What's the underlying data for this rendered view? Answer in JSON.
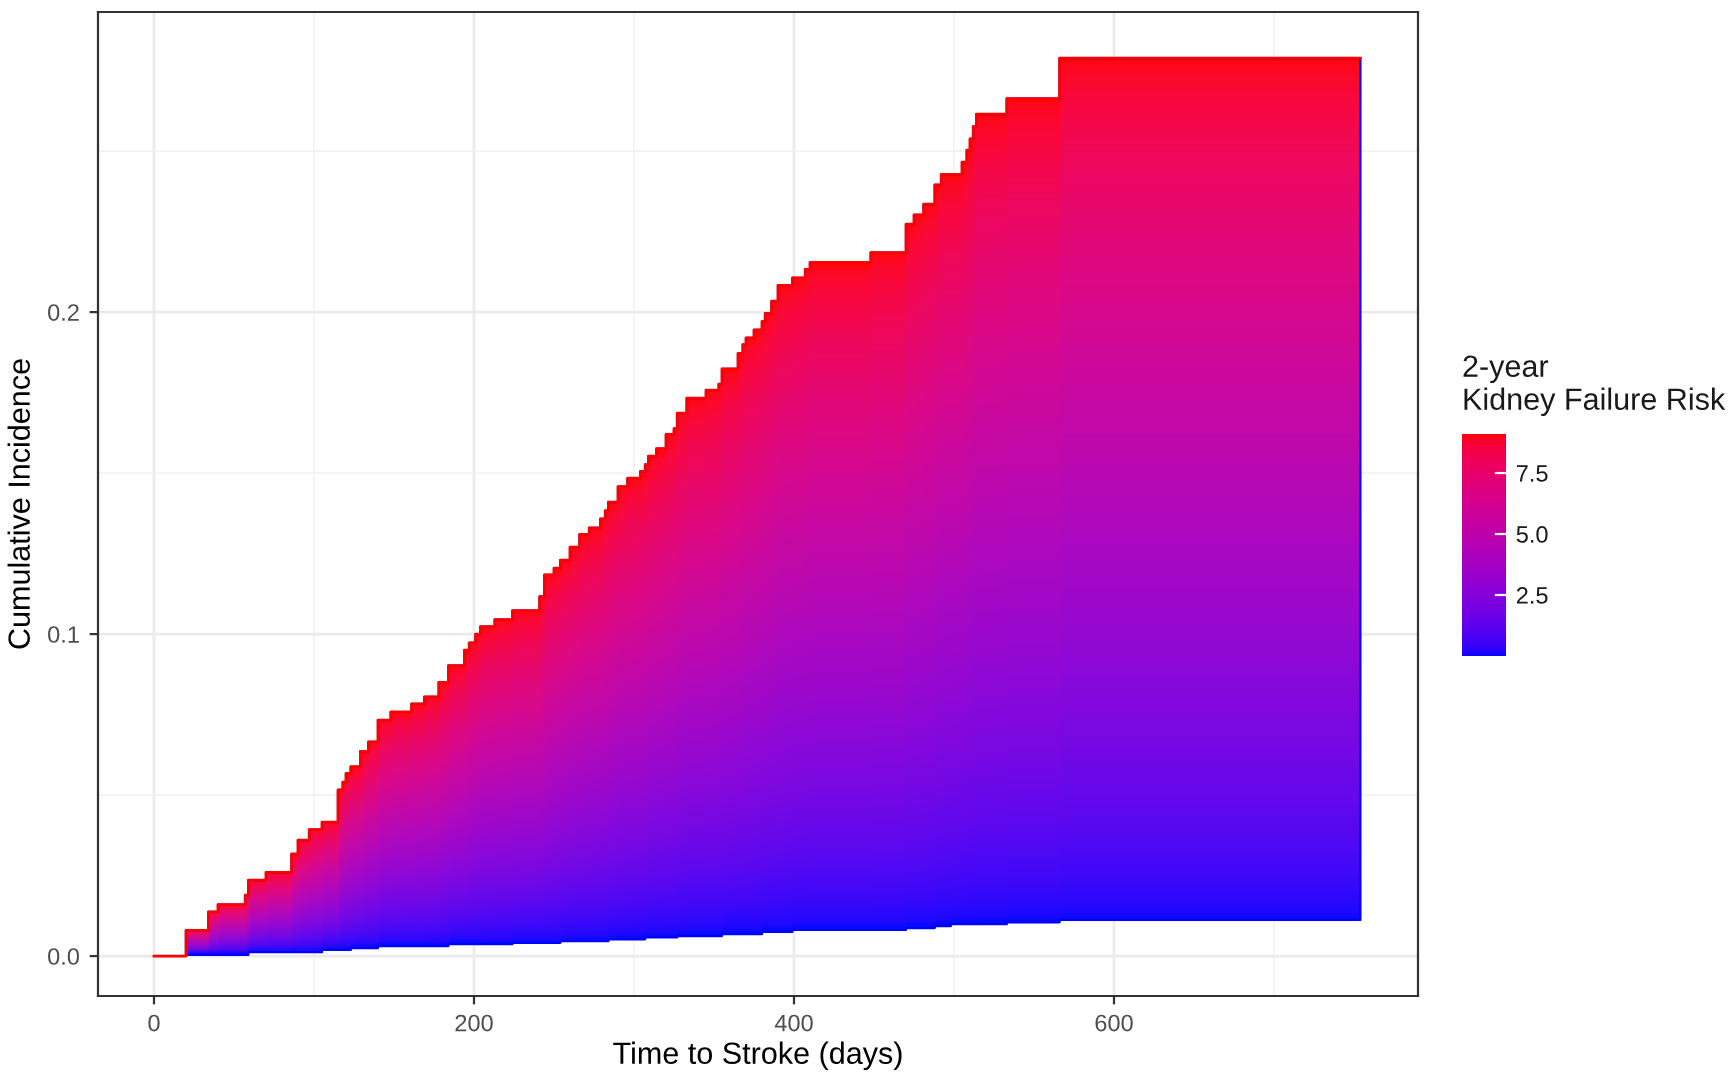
{
  "chart_data": {
    "type": "step",
    "xlabel": "Time to Stroke (days)",
    "ylabel": "Cumulative Incidence",
    "clabel": "2-year\nKidney Failure Risk",
    "xlim": [
      -35,
      790
    ],
    "xticks": [
      0,
      200,
      400,
      600
    ],
    "ylim": [
      -0.0124,
      0.2932
    ],
    "yticks": [
      {
        "value": 0,
        "label": "0.0"
      },
      {
        "value": 0.1,
        "label": "0.1"
      },
      {
        "value": 0.2,
        "label": "0.2"
      }
    ],
    "clim": [
      0,
      9.1
    ],
    "cticks": [
      {
        "value": 2.5,
        "label": "2.5"
      },
      {
        "value": 5,
        "label": "5.0"
      },
      {
        "value": 7.5,
        "label": "7.5"
      }
    ],
    "grid": true,
    "legend": false,
    "line_style": "solid",
    "series": [
      {
        "color": "#ff0000",
        "x": [
          0,
          20,
          34,
          40,
          57,
          59,
          70,
          86,
          90,
          97,
          105,
          115,
          118,
          120,
          123,
          129,
          134,
          140,
          148,
          161,
          169,
          178,
          184,
          194,
          197,
          201,
          204,
          213,
          224,
          241,
          244,
          250,
          254,
          260,
          266,
          272,
          279,
          282,
          284,
          290,
          296,
          304,
          307,
          309,
          314,
          320,
          325,
          327,
          333,
          345,
          353,
          355,
          365,
          368,
          370,
          375,
          380,
          382,
          386,
          390,
          399,
          407,
          410,
          448,
          470,
          475,
          481,
          488,
          492,
          498,
          505,
          508,
          510,
          512,
          514,
          533,
          566,
          754
        ],
        "values": [
          0,
          0.008,
          0.0137,
          0.016,
          0.0189,
          0.0236,
          0.026,
          0.0317,
          0.036,
          0.0393,
          0.0416,
          0.0516,
          0.054,
          0.0567,
          0.0588,
          0.0636,
          0.0665,
          0.0733,
          0.0758,
          0.0783,
          0.0805,
          0.085,
          0.0902,
          0.095,
          0.0973,
          0.1,
          0.1023,
          0.1045,
          0.1073,
          0.1116,
          0.1184,
          0.1205,
          0.123,
          0.127,
          0.131,
          0.133,
          0.1358,
          0.1383,
          0.141,
          0.1458,
          0.1484,
          0.1505,
          0.1526,
          0.1553,
          0.1576,
          0.162,
          0.1638,
          0.1686,
          0.1733,
          0.1758,
          0.1776,
          0.1824,
          0.1872,
          0.1899,
          0.192,
          0.1945,
          0.1971,
          0.1996,
          0.2034,
          0.2083,
          0.2106,
          0.2133,
          0.2154,
          0.2185,
          0.2273,
          0.2302,
          0.2335,
          0.2395,
          0.2428,
          0.2428,
          0.2466,
          0.2503,
          0.2538,
          0.2576,
          0.2615,
          0.2663,
          0.2789,
          0.2789
        ],
        "upper": [
          null,
          0.008,
          0.0137,
          0.016,
          0.0189,
          0.0236,
          0.026,
          0.0317,
          0.036,
          0.0393,
          0.0416,
          0.0516,
          0.054,
          0.0567,
          0.0588,
          0.0636,
          0.0665,
          0.0733,
          0.0758,
          0.0783,
          0.0805,
          0.085,
          0.0902,
          0.095,
          0.0973,
          0.1,
          0.1023,
          0.1045,
          0.1073,
          0.1116,
          0.1184,
          0.1205,
          0.123,
          0.127,
          0.131,
          0.133,
          0.1358,
          0.1383,
          0.141,
          0.1458,
          0.1484,
          0.1505,
          0.1526,
          0.1553,
          0.1576,
          0.162,
          0.1638,
          0.1686,
          0.1733,
          0.1758,
          0.1776,
          0.1824,
          0.1872,
          0.1899,
          0.192,
          0.1945,
          0.1971,
          0.1996,
          0.2034,
          0.2083,
          0.2106,
          0.2133,
          0.2154,
          0.2185,
          0.2273,
          0.2302,
          0.2335,
          0.2395,
          0.2428,
          0.2428,
          0.2466,
          0.2503,
          0.2538,
          0.2576,
          0.2615,
          0.2663,
          0.2789,
          0.2789
        ],
        "lower": [
          null,
          0.0004,
          0.0004,
          0.0004,
          0.0004,
          0.0012,
          0.0012,
          0.0012,
          0.0012,
          0.0012,
          0.0019,
          0.0019,
          0.0019,
          0.0019,
          0.0025,
          0.0025,
          0.0025,
          0.0031,
          0.0031,
          0.0031,
          0.0031,
          0.0031,
          0.0037,
          0.0037,
          0.0037,
          0.0037,
          0.0037,
          0.0037,
          0.0041,
          0.0041,
          0.0041,
          0.0041,
          0.0046,
          0.0046,
          0.0046,
          0.0046,
          0.0046,
          0.0046,
          0.0052,
          0.0052,
          0.0052,
          0.0052,
          0.0058,
          0.0058,
          0.0058,
          0.0058,
          0.0058,
          0.0062,
          0.0062,
          0.0062,
          0.0062,
          0.0068,
          0.0068,
          0.0068,
          0.0068,
          0.0068,
          0.0075,
          0.0075,
          0.0075,
          0.0075,
          0.0081,
          0.0081,
          0.0081,
          0.0081,
          0.0087,
          0.0087,
          0.0087,
          0.0093,
          0.0093,
          0.0099,
          0.0099,
          0.0099,
          0.0099,
          0.0099,
          0.0099,
          0.0105,
          0.0112,
          0.0112
        ]
      }
    ]
  }
}
